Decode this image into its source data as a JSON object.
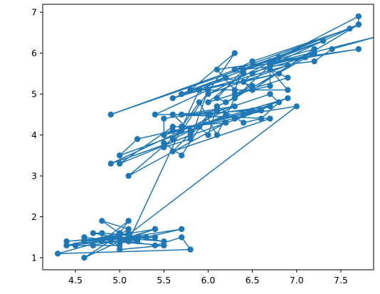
{
  "chart_data": {
    "type": "scatter",
    "title": "",
    "xlabel": "",
    "ylabel": "",
    "xlim": [
      4.13,
      7.87
    ],
    "ylim": [
      0.705,
      7.195
    ],
    "x_ticks": [
      4.5,
      5.0,
      5.5,
      6.0,
      6.5,
      7.0,
      7.5
    ],
    "x_tick_labels": [
      "4.5",
      "5.0",
      "5.5",
      "6.0",
      "6.5",
      "7.0",
      "7.5"
    ],
    "y_ticks": [
      1,
      2,
      3,
      4,
      5,
      6,
      7
    ],
    "y_tick_labels": [
      "1",
      "2",
      "3",
      "4",
      "5",
      "6",
      "7"
    ],
    "grid": false,
    "legend": "none",
    "color": "#1f77b4",
    "series": [
      {
        "kind": "scatter",
        "x": [
          5.1,
          4.9,
          4.7,
          4.6,
          5.0,
          5.4,
          4.6,
          5.0,
          4.4,
          4.9,
          5.4,
          4.8,
          4.8,
          4.3,
          5.8,
          5.7,
          5.4,
          5.1,
          5.7,
          5.1,
          5.4,
          5.1,
          4.6,
          5.1,
          4.8,
          5.0,
          5.0,
          5.2,
          5.2,
          4.7,
          4.8,
          5.4,
          5.2,
          5.5,
          4.9,
          5.0,
          5.5,
          4.9,
          4.4,
          5.1,
          5.0,
          4.5,
          4.4,
          5.0,
          5.1,
          4.8,
          5.1,
          4.6,
          5.3,
          5.0,
          7.0,
          6.4,
          6.9,
          5.5,
          6.5,
          5.7,
          6.3,
          4.9,
          6.6,
          5.2,
          5.0,
          5.9,
          6.0,
          6.1,
          5.6,
          6.7,
          5.6,
          5.8,
          6.2,
          5.6,
          5.9,
          6.1,
          6.3,
          6.1,
          6.4,
          6.6,
          6.8,
          6.7,
          6.0,
          5.7,
          5.5,
          5.5,
          5.8,
          6.0,
          5.4,
          6.0,
          6.7,
          6.3,
          5.6,
          5.5,
          5.5,
          6.1,
          5.8,
          5.0,
          5.6,
          5.7,
          5.7,
          6.2,
          5.1,
          5.7,
          6.3,
          5.8,
          7.1,
          6.3,
          6.5,
          7.6,
          4.9,
          7.3,
          6.7,
          7.2,
          6.5,
          6.4,
          6.8,
          5.7,
          5.8,
          6.4,
          6.5,
          7.7,
          7.7,
          6.0,
          6.9,
          5.6,
          7.7,
          6.3,
          6.7,
          7.2,
          6.2,
          6.1,
          6.4,
          7.2,
          7.4,
          7.9,
          6.4,
          6.3,
          6.1,
          7.7,
          6.3,
          6.4,
          6.0,
          6.9,
          6.7,
          6.9,
          5.8,
          6.8,
          6.7,
          6.7,
          6.3,
          6.5,
          6.2,
          5.9
        ],
        "y": [
          1.4,
          1.4,
          1.3,
          1.5,
          1.4,
          1.7,
          1.4,
          1.5,
          1.4,
          1.5,
          1.5,
          1.6,
          1.4,
          1.1,
          1.2,
          1.5,
          1.3,
          1.4,
          1.7,
          1.5,
          1.7,
          1.5,
          1.0,
          1.7,
          1.9,
          1.6,
          1.6,
          1.5,
          1.4,
          1.6,
          1.6,
          1.5,
          1.5,
          1.4,
          1.5,
          1.2,
          1.3,
          1.4,
          1.3,
          1.5,
          1.3,
          1.3,
          1.3,
          1.6,
          1.9,
          1.4,
          1.6,
          1.4,
          1.5,
          1.4,
          4.7,
          4.5,
          4.9,
          4.0,
          4.6,
          4.5,
          4.7,
          3.3,
          4.6,
          3.9,
          3.5,
          4.2,
          4.0,
          4.7,
          3.6,
          4.4,
          4.5,
          4.1,
          4.5,
          3.9,
          4.8,
          4.0,
          4.9,
          4.7,
          4.3,
          4.4,
          4.8,
          5.0,
          4.5,
          3.5,
          3.8,
          3.7,
          3.9,
          5.1,
          4.5,
          4.5,
          4.7,
          4.4,
          4.1,
          4.0,
          4.4,
          4.6,
          4.0,
          3.3,
          4.2,
          4.2,
          4.2,
          4.3,
          3.0,
          4.1,
          6.0,
          5.1,
          5.9,
          5.6,
          5.8,
          6.6,
          4.5,
          6.3,
          5.8,
          6.1,
          5.1,
          5.3,
          5.5,
          5.0,
          5.1,
          5.3,
          5.5,
          6.7,
          6.9,
          5.0,
          5.7,
          4.9,
          6.7,
          4.9,
          5.7,
          6.0,
          4.8,
          4.9,
          5.6,
          5.8,
          6.1,
          6.4,
          5.6,
          5.1,
          5.6,
          6.1,
          5.6,
          5.5,
          4.8,
          5.4,
          5.6,
          5.1,
          5.1,
          5.9,
          5.7,
          5.2,
          5.0,
          5.2,
          5.4,
          5.1
        ]
      },
      {
        "kind": "line",
        "closed": true
      }
    ]
  }
}
